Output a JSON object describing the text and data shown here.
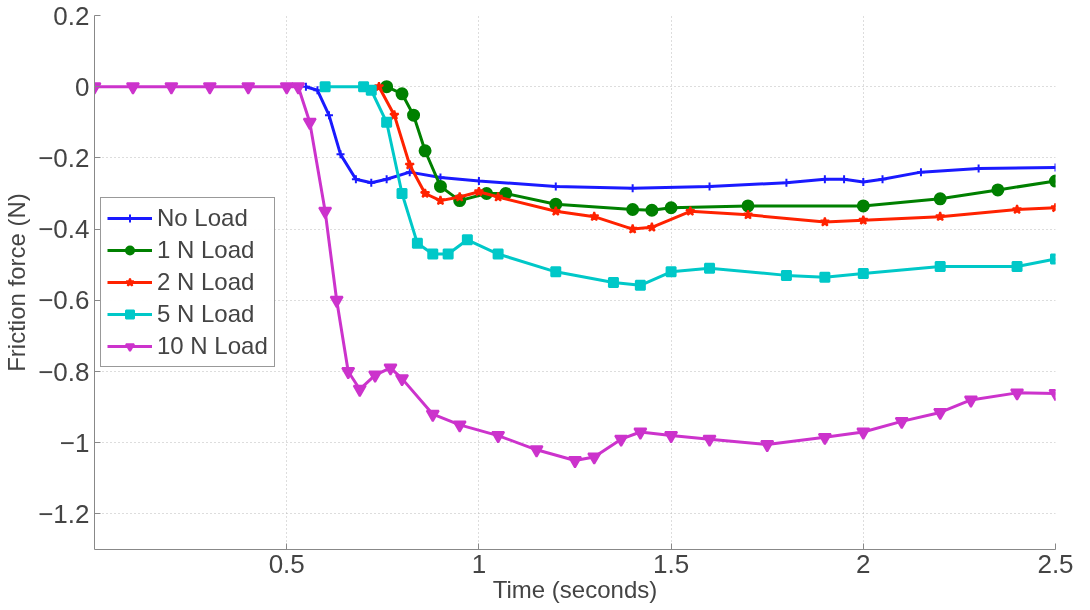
{
  "chart_data": {
    "type": "line",
    "xlabel": "Time (seconds)",
    "ylabel": "Friction force (N)",
    "xlim": [
      0,
      2.5
    ],
    "ylim": [
      -1.3,
      0.2
    ],
    "xticks": [
      0.5,
      1,
      1.5,
      2,
      2.5
    ],
    "yticks": [
      0.2,
      0,
      -0.2,
      -0.4,
      -0.6,
      -0.8,
      -1,
      -1.2
    ],
    "grid": true,
    "legend": "left",
    "series": [
      {
        "name": "No Load",
        "color": "#1a1aff",
        "marker": "cross",
        "x": [
          0.55,
          0.58,
          0.61,
          0.64,
          0.68,
          0.72,
          0.76,
          0.82,
          0.9,
          1.0,
          1.2,
          1.4,
          1.6,
          1.8,
          1.9,
          1.95,
          2.0,
          2.05,
          2.15,
          2.3,
          2.5
        ],
        "values": [
          0,
          -0.01,
          -0.08,
          -0.19,
          -0.26,
          -0.27,
          -0.26,
          -0.24,
          -0.255,
          -0.265,
          -0.28,
          -0.285,
          -0.28,
          -0.27,
          -0.26,
          -0.26,
          -0.268,
          -0.26,
          -0.24,
          -0.23,
          -0.227
        ]
      },
      {
        "name": "1 N Load",
        "color": "#008000",
        "marker": "circle",
        "x": [
          0.76,
          0.8,
          0.83,
          0.86,
          0.9,
          0.95,
          1.02,
          1.07,
          1.2,
          1.4,
          1.45,
          1.5,
          1.7,
          2.0,
          2.2,
          2.35,
          2.5
        ],
        "values": [
          0,
          -0.02,
          -0.08,
          -0.18,
          -0.28,
          -0.32,
          -0.3,
          -0.3,
          -0.33,
          -0.345,
          -0.347,
          -0.34,
          -0.335,
          -0.335,
          -0.315,
          -0.29,
          -0.265
        ]
      },
      {
        "name": "2 N Load",
        "color": "#ff2200",
        "marker": "star",
        "x": [
          0.74,
          0.78,
          0.82,
          0.86,
          0.9,
          0.95,
          1.0,
          1.05,
          1.2,
          1.3,
          1.4,
          1.45,
          1.55,
          1.7,
          1.9,
          2.0,
          2.2,
          2.4,
          2.5
        ],
        "values": [
          0,
          -0.08,
          -0.22,
          -0.3,
          -0.32,
          -0.31,
          -0.295,
          -0.31,
          -0.35,
          -0.365,
          -0.4,
          -0.395,
          -0.35,
          -0.36,
          -0.38,
          -0.375,
          -0.365,
          -0.345,
          -0.34
        ]
      },
      {
        "name": "5 N Load",
        "color": "#00c8c8",
        "marker": "square",
        "x": [
          0.6,
          0.7,
          0.72,
          0.76,
          0.8,
          0.84,
          0.88,
          0.92,
          0.97,
          1.05,
          1.2,
          1.35,
          1.42,
          1.5,
          1.6,
          1.8,
          1.9,
          2.0,
          2.2,
          2.4,
          2.5
        ],
        "values": [
          0,
          0,
          -0.01,
          -0.1,
          -0.3,
          -0.44,
          -0.47,
          -0.47,
          -0.43,
          -0.47,
          -0.52,
          -0.55,
          -0.558,
          -0.52,
          -0.51,
          -0.53,
          -0.535,
          -0.525,
          -0.505,
          -0.505,
          -0.484
        ]
      },
      {
        "name": "10 N Load",
        "color": "#cc33cc",
        "marker": "triangle",
        "x": [
          0,
          0.1,
          0.2,
          0.3,
          0.4,
          0.5,
          0.53,
          0.56,
          0.6,
          0.63,
          0.66,
          0.69,
          0.73,
          0.77,
          0.8,
          0.88,
          0.95,
          1.05,
          1.15,
          1.25,
          1.3,
          1.37,
          1.42,
          1.5,
          1.6,
          1.75,
          1.9,
          2.0,
          2.1,
          2.2,
          2.28,
          2.4,
          2.5
        ],
        "values": [
          0,
          0,
          0,
          0,
          0,
          0,
          0,
          -0.1,
          -0.35,
          -0.6,
          -0.8,
          -0.85,
          -0.81,
          -0.79,
          -0.82,
          -0.92,
          -0.95,
          -0.98,
          -1.02,
          -1.05,
          -1.04,
          -0.99,
          -0.97,
          -0.98,
          -0.99,
          -1.005,
          -0.985,
          -0.97,
          -0.94,
          -0.915,
          -0.88,
          -0.86,
          -0.862
        ]
      }
    ]
  }
}
